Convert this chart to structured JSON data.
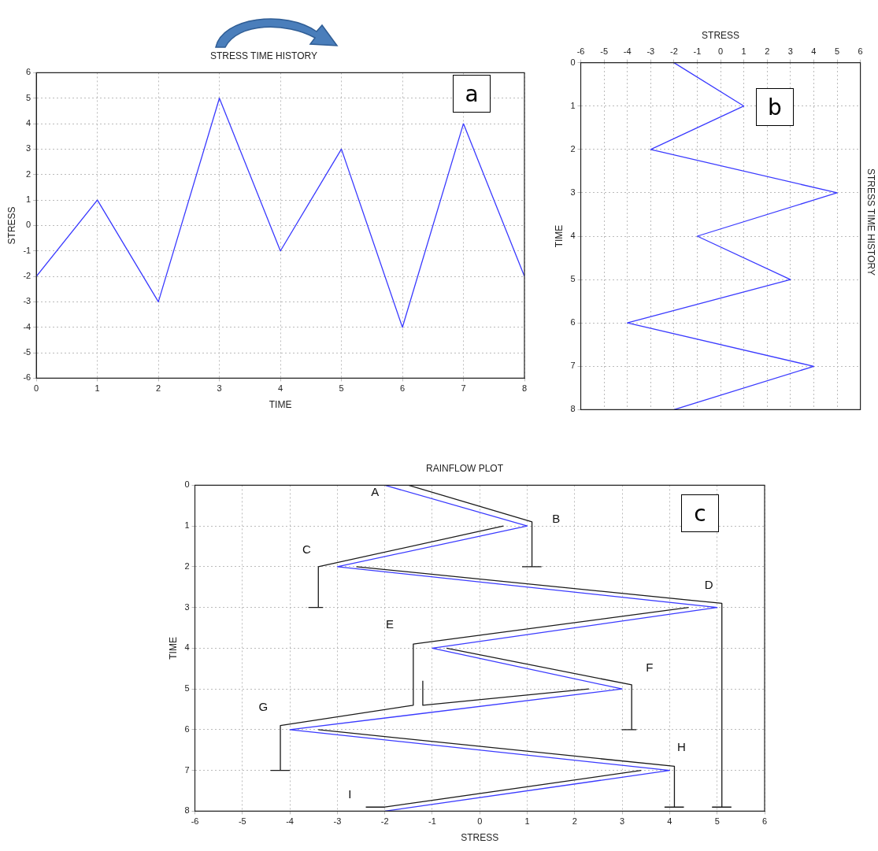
{
  "chart_data": [
    {
      "type": "line",
      "title": "STRESS TIME HISTORY",
      "xlabel": "TIME",
      "ylabel": "STRESS",
      "x": [
        0,
        1,
        2,
        3,
        4,
        5,
        6,
        7,
        8
      ],
      "series": [
        {
          "color": "#3a3aff",
          "values": [
            -2,
            1,
            -3,
            5,
            -1,
            3,
            -4,
            4,
            -2
          ]
        }
      ],
      "xlim": [
        0,
        8
      ],
      "ylim": [
        -6,
        6
      ],
      "xticks": [
        0,
        1,
        2,
        3,
        4,
        5,
        6,
        7,
        8
      ],
      "yticks": [
        -6,
        -5,
        -4,
        -3,
        -2,
        -1,
        0,
        1,
        2,
        3,
        4,
        5,
        6
      ],
      "grid": true,
      "annotations": [
        "a"
      ]
    },
    {
      "type": "line",
      "title": "STRESS TIME HISTORY",
      "xlabel": "STRESS",
      "ylabel": "TIME",
      "series": [
        {
          "color": "#3a3aff",
          "x": [
            -2,
            1,
            -3,
            5,
            -1,
            3,
            -4,
            4,
            -2
          ],
          "values": [
            0,
            1,
            2,
            3,
            4,
            5,
            6,
            7,
            8
          ]
        }
      ],
      "xlim": [
        -6,
        6
      ],
      "ylim": [
        8,
        0
      ],
      "xticks": [
        -6,
        -5,
        -4,
        -3,
        -2,
        -1,
        0,
        1,
        2,
        3,
        4,
        5,
        6
      ],
      "yticks": [
        0,
        1,
        2,
        3,
        4,
        5,
        6,
        7,
        8
      ],
      "grid": true,
      "annotations": [
        "b"
      ]
    },
    {
      "type": "line",
      "title": "RAINFLOW PLOT",
      "xlabel": "STRESS",
      "ylabel": "TIME",
      "series": [
        {
          "color": "#3a3aff",
          "x": [
            -2,
            1,
            -3,
            5,
            -1,
            3,
            -4,
            4,
            -2
          ],
          "values": [
            0,
            1,
            2,
            3,
            4,
            5,
            6,
            7,
            8
          ]
        },
        {
          "color": "#1a1a1a",
          "x": [
            -1.5,
            1.1,
            1.1,
            0.9,
            1.3
          ],
          "values": [
            0,
            0.9,
            2,
            2,
            2
          ]
        },
        {
          "color": "#1a1a1a",
          "x": [
            0.5,
            -3.4,
            -3.4,
            -3.6,
            -3.3
          ],
          "values": [
            1,
            2,
            3,
            3,
            3
          ]
        },
        {
          "color": "#1a1a1a",
          "x": [
            -2.6,
            5.1,
            5.1,
            4.9,
            5.3
          ],
          "values": [
            2,
            2.9,
            7.9,
            7.9,
            7.9
          ]
        },
        {
          "color": "#1a1a1a",
          "x": [
            4.4,
            -1.4,
            -1.4,
            -4.2,
            -4.2,
            -4.4,
            -4
          ],
          "values": [
            3,
            3.9,
            5.4,
            5.9,
            7,
            7,
            7
          ]
        },
        {
          "color": "#1a1a1a",
          "x": [
            -0.7,
            3.2,
            3.2,
            3,
            3.3
          ],
          "values": [
            4,
            4.9,
            6,
            6,
            6
          ]
        },
        {
          "color": "#1a1a1a",
          "x": [
            2.3,
            -1.2,
            -1.2
          ],
          "values": [
            5,
            5.4,
            4.8
          ]
        },
        {
          "color": "#1a1a1a",
          "x": [
            -3.4,
            4.1,
            4.1,
            3.9,
            4.3
          ],
          "values": [
            6,
            6.9,
            7.9,
            7.9,
            7.9
          ]
        },
        {
          "color": "#1a1a1a",
          "x": [
            3.4,
            -2,
            -2.4
          ],
          "values": [
            7,
            7.9,
            7.9
          ]
        }
      ],
      "xlim": [
        -6,
        6
      ],
      "ylim": [
        8,
        0
      ],
      "xticks": [
        -6,
        -5,
        -4,
        -3,
        -2,
        -1,
        0,
        1,
        2,
        3,
        4,
        5,
        6
      ],
      "yticks": [
        0,
        1,
        2,
        3,
        4,
        5,
        6,
        7,
        8
      ],
      "grid": true,
      "annotations": [
        "c",
        "A",
        "B",
        "C",
        "D",
        "E",
        "F",
        "G",
        "H",
        "I"
      ]
    }
  ]
}
